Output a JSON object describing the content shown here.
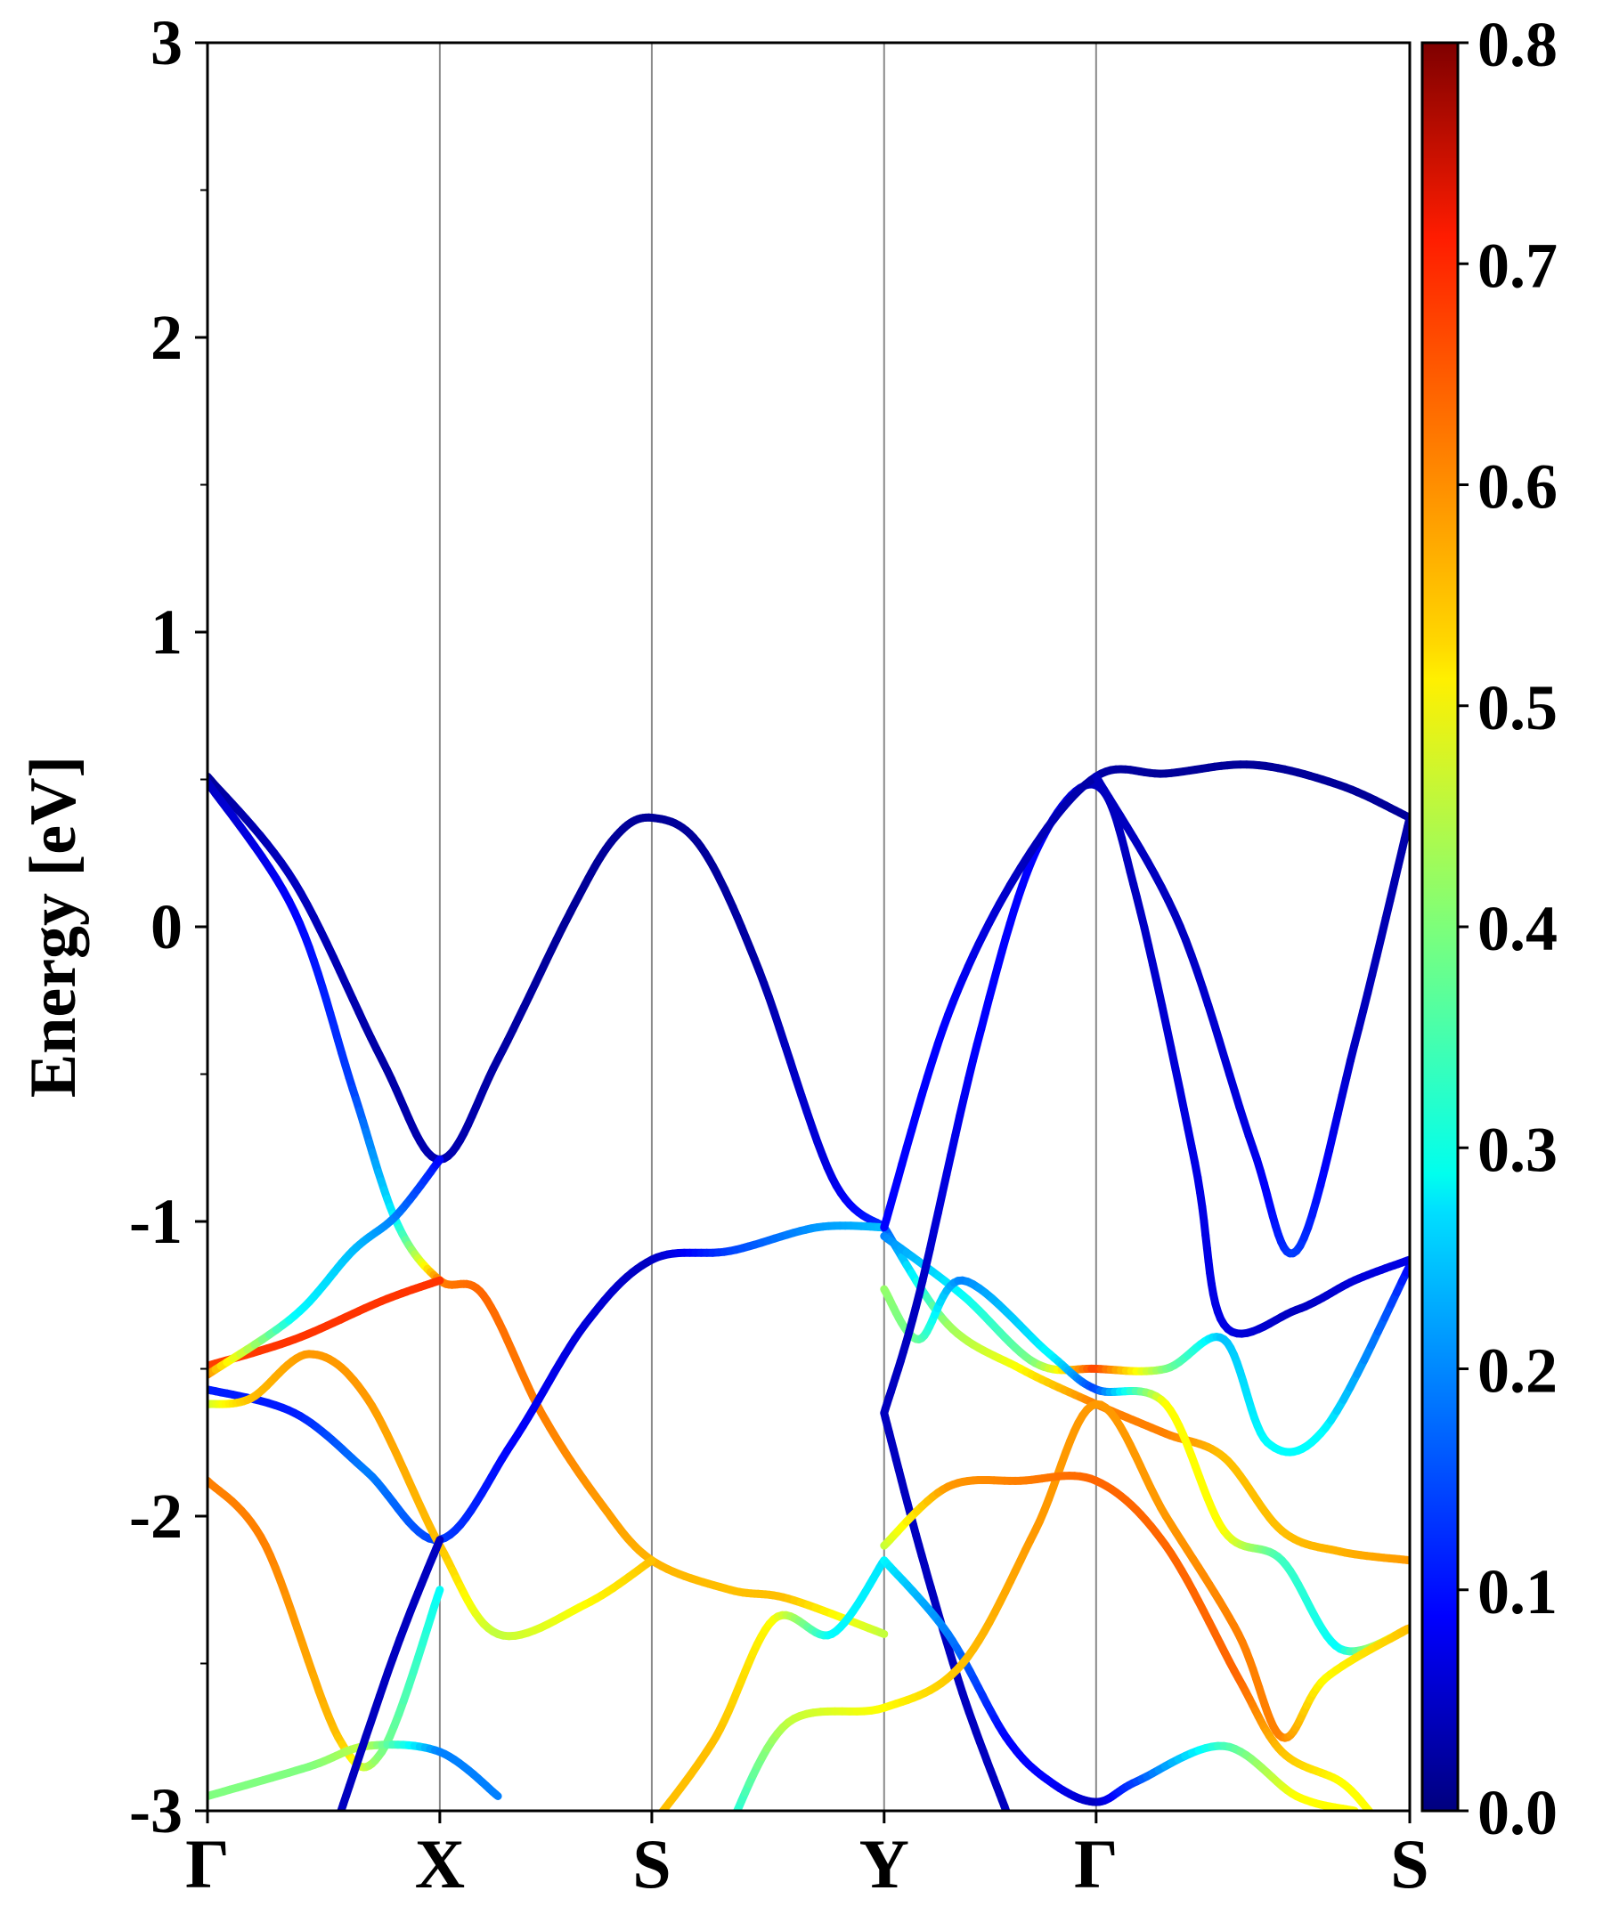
{
  "chart_data": {
    "type": "line",
    "ylabel": "Energy [eV]",
    "ylim": [
      -3,
      3
    ],
    "yticks": [
      "3",
      "2",
      "1",
      "0",
      "-1",
      "-2",
      "-3"
    ],
    "ytick_values": [
      3,
      2,
      1,
      0,
      -1,
      -2,
      -3
    ],
    "k_labels": [
      "Γ",
      "X",
      "S",
      "Y",
      "Γ",
      "S"
    ],
    "k_positions": [
      0,
      0.8,
      1.53,
      2.33,
      3.06,
      4.14
    ],
    "colorbar": {
      "colormap": "jet",
      "range": [
        0.0,
        0.8
      ],
      "ticks": [
        "0.8",
        "0.7",
        "0.6",
        "0.5",
        "0.4",
        "0.3",
        "0.2",
        "0.1",
        "0.0"
      ],
      "tick_values": [
        0.8,
        0.7,
        0.6,
        0.5,
        0.4,
        0.3,
        0.2,
        0.1,
        0.0
      ]
    },
    "series": [
      {
        "points": [
          [
            0,
            0.51,
            0.02
          ],
          [
            0.3,
            0.15,
            0.05
          ],
          [
            0.6,
            -0.45,
            0.03
          ],
          [
            0.8,
            -0.79,
            0.04
          ],
          [
            1.0,
            -0.45,
            0.03
          ],
          [
            1.25,
            0.05,
            0.02
          ],
          [
            1.4,
            0.3,
            0.02
          ],
          [
            1.53,
            0.37,
            0.02
          ],
          [
            1.7,
            0.27,
            0.02
          ],
          [
            1.9,
            -0.15,
            0.03
          ],
          [
            2.15,
            -0.85,
            0.08
          ],
          [
            2.33,
            -1.02,
            0.14
          ]
        ]
      },
      {
        "points": [
          [
            0,
            0.49,
            0.05
          ],
          [
            0.3,
            0.05,
            0.1
          ],
          [
            0.5,
            -0.55,
            0.15
          ],
          [
            0.65,
            -1.0,
            0.3
          ],
          [
            0.8,
            -1.2,
            0.6
          ],
          [
            0.95,
            -1.25,
            0.62
          ],
          [
            1.15,
            -1.65,
            0.6
          ],
          [
            1.35,
            -1.95,
            0.58
          ],
          [
            1.53,
            -2.15,
            0.56
          ],
          [
            1.8,
            -2.25,
            0.55
          ],
          [
            2.0,
            -2.28,
            0.55
          ],
          [
            2.33,
            -2.4,
            0.45
          ]
        ]
      },
      {
        "points": [
          [
            0,
            -1.49,
            0.65
          ],
          [
            0.3,
            -1.4,
            0.66
          ],
          [
            0.6,
            -1.27,
            0.66
          ],
          [
            0.8,
            -1.2,
            0.66
          ]
        ]
      },
      {
        "points": [
          [
            0,
            -1.52,
            0.6
          ],
          [
            0.3,
            -1.32,
            0.3
          ],
          [
            0.5,
            -1.1,
            0.25
          ],
          [
            0.65,
            -0.98,
            0.2
          ],
          [
            0.8,
            -0.79,
            0.1
          ]
        ]
      },
      {
        "points": [
          [
            0,
            -1.57,
            0.12
          ],
          [
            0.3,
            -1.65,
            0.12
          ],
          [
            0.55,
            -1.85,
            0.2
          ],
          [
            0.8,
            -2.08,
            0.15
          ],
          [
            1.05,
            -1.75,
            0.1
          ],
          [
            1.3,
            -1.35,
            0.07
          ],
          [
            1.53,
            -1.13,
            0.05
          ],
          [
            1.8,
            -1.1,
            0.15
          ],
          [
            2.1,
            -1.02,
            0.22
          ],
          [
            2.33,
            -1.02,
            0.25
          ]
        ]
      },
      {
        "points": [
          [
            0,
            -1.62,
            0.45
          ],
          [
            0.15,
            -1.6,
            0.55
          ],
          [
            0.35,
            -1.45,
            0.58
          ],
          [
            0.55,
            -1.6,
            0.58
          ],
          [
            0.8,
            -2.1,
            0.55
          ],
          [
            1.0,
            -2.4,
            0.45
          ],
          [
            1.3,
            -2.3,
            0.5
          ],
          [
            1.53,
            -2.15,
            0.55
          ]
        ]
      },
      {
        "points": [
          [
            0,
            -1.88,
            0.6
          ],
          [
            0.2,
            -2.1,
            0.6
          ],
          [
            0.45,
            -2.75,
            0.55
          ],
          [
            0.6,
            -2.8,
            0.4
          ],
          [
            0.8,
            -2.25,
            0.3
          ]
        ]
      },
      {
        "points": [
          [
            0,
            -2.95,
            0.4
          ],
          [
            0.35,
            -2.85,
            0.4
          ],
          [
            0.55,
            -2.78,
            0.45
          ],
          [
            0.8,
            -2.8,
            0.2
          ],
          [
            1.0,
            -2.95,
            0.2
          ]
        ]
      },
      {
        "points": [
          [
            0.46,
            -3.0,
            0.05
          ],
          [
            0.65,
            -2.45,
            0.05
          ],
          [
            0.8,
            -2.08,
            0.05
          ]
        ]
      },
      {
        "points": [
          [
            2.33,
            -1.02,
            0.15
          ],
          [
            2.55,
            -1.35,
            0.42
          ],
          [
            2.8,
            -1.5,
            0.5
          ],
          [
            3.06,
            -1.62,
            0.6
          ],
          [
            3.3,
            -1.72,
            0.6
          ],
          [
            3.5,
            -1.8,
            0.55
          ],
          [
            3.7,
            -2.05,
            0.55
          ],
          [
            3.9,
            -2.12,
            0.56
          ],
          [
            4.14,
            -2.15,
            0.58
          ]
        ]
      },
      {
        "points": [
          [
            2.33,
            -1.05,
            0.2
          ],
          [
            2.6,
            -1.25,
            0.3
          ],
          [
            2.85,
            -1.48,
            0.4
          ],
          [
            3.06,
            -1.5,
            0.65
          ],
          [
            3.3,
            -1.5,
            0.4
          ],
          [
            3.5,
            -1.4,
            0.25
          ],
          [
            3.65,
            -1.75,
            0.3
          ],
          [
            3.85,
            -1.7,
            0.3
          ],
          [
            4.14,
            -1.15,
            0.1
          ]
        ]
      },
      {
        "points": [
          [
            2.33,
            -1.23,
            0.42
          ],
          [
            2.45,
            -1.4,
            0.38
          ],
          [
            2.6,
            -1.2,
            0.2
          ],
          [
            2.9,
            -1.45,
            0.3
          ],
          [
            3.06,
            -1.57,
            0.15
          ],
          [
            3.3,
            -1.62,
            0.5
          ],
          [
            3.5,
            -2.05,
            0.5
          ],
          [
            3.7,
            -2.15,
            0.35
          ],
          [
            3.9,
            -2.45,
            0.3
          ],
          [
            4.14,
            -2.38,
            0.6
          ]
        ]
      },
      {
        "points": [
          [
            2.33,
            -1.65,
            0.05
          ],
          [
            2.45,
            -1.25,
            0.05
          ],
          [
            2.65,
            -0.4,
            0.1
          ],
          [
            2.85,
            0.25,
            0.1
          ],
          [
            3.06,
            0.48,
            0.05
          ],
          [
            3.2,
            0.1,
            0.05
          ],
          [
            3.4,
            -0.8,
            0.08
          ],
          [
            3.5,
            -1.35,
            0.08
          ],
          [
            3.75,
            -1.3,
            0.05
          ],
          [
            3.95,
            -1.2,
            0.07
          ],
          [
            4.14,
            -1.13,
            0.08
          ]
        ]
      },
      {
        "points": [
          [
            2.33,
            -1.02,
            0.1
          ],
          [
            2.55,
            -0.3,
            0.1
          ],
          [
            2.8,
            0.2,
            0.05
          ],
          [
            3.06,
            0.51,
            0.03
          ],
          [
            3.3,
            0.52,
            0.02
          ],
          [
            3.6,
            0.55,
            0.02
          ],
          [
            3.9,
            0.48,
            0.02
          ],
          [
            4.14,
            0.37,
            0.02
          ]
        ]
      },
      {
        "points": [
          [
            3.06,
            0.51,
            0.05
          ],
          [
            3.35,
            0.0,
            0.05
          ],
          [
            3.6,
            -0.75,
            0.08
          ],
          [
            3.75,
            -1.1,
            0.15
          ],
          [
            3.95,
            -0.4,
            0.05
          ],
          [
            4.14,
            0.37,
            0.03
          ]
        ]
      },
      {
        "points": [
          [
            1.53,
            -3.05,
            0.55
          ],
          [
            1.75,
            -2.75,
            0.55
          ],
          [
            1.95,
            -2.35,
            0.5
          ],
          [
            2.15,
            -2.4,
            0.3
          ],
          [
            2.33,
            -2.15,
            0.28
          ]
        ]
      },
      {
        "points": [
          [
            2.33,
            -1.65,
            0.05
          ],
          [
            2.45,
            -2.1,
            0.05
          ],
          [
            2.6,
            -2.6,
            0.05
          ],
          [
            2.75,
            -3.0,
            0.05
          ]
        ]
      },
      {
        "points": [
          [
            2.33,
            -2.15,
            0.3
          ],
          [
            2.55,
            -2.4,
            0.2
          ],
          [
            2.75,
            -2.75,
            0.1
          ],
          [
            2.9,
            -2.9,
            0.1
          ],
          [
            3.06,
            -2.97,
            0.05
          ],
          [
            3.2,
            -2.9,
            0.15
          ],
          [
            3.5,
            -2.78,
            0.35
          ],
          [
            3.75,
            -2.95,
            0.5
          ],
          [
            3.95,
            -3.0,
            0.5
          ]
        ]
      },
      {
        "points": [
          [
            1.8,
            -3.05,
            0.3
          ],
          [
            2.0,
            -2.7,
            0.45
          ],
          [
            2.33,
            -2.65,
            0.5
          ],
          [
            2.6,
            -2.5,
            0.55
          ],
          [
            2.85,
            -2.05,
            0.58
          ],
          [
            3.06,
            -1.62,
            0.58
          ],
          [
            3.3,
            -2.0,
            0.58
          ],
          [
            3.55,
            -2.4,
            0.6
          ],
          [
            3.7,
            -2.75,
            0.6
          ],
          [
            3.85,
            -2.55,
            0.5
          ],
          [
            4.14,
            -2.38,
            0.55
          ]
        ]
      },
      {
        "points": [
          [
            2.33,
            -2.1,
            0.45
          ],
          [
            2.55,
            -1.9,
            0.58
          ],
          [
            2.8,
            -1.88,
            0.6
          ],
          [
            3.06,
            -1.88,
            0.62
          ],
          [
            3.3,
            -2.1,
            0.62
          ],
          [
            3.55,
            -2.55,
            0.62
          ],
          [
            3.7,
            -2.8,
            0.55
          ],
          [
            3.9,
            -2.9,
            0.5
          ],
          [
            4.0,
            -3.0,
            0.5
          ]
        ]
      }
    ]
  }
}
